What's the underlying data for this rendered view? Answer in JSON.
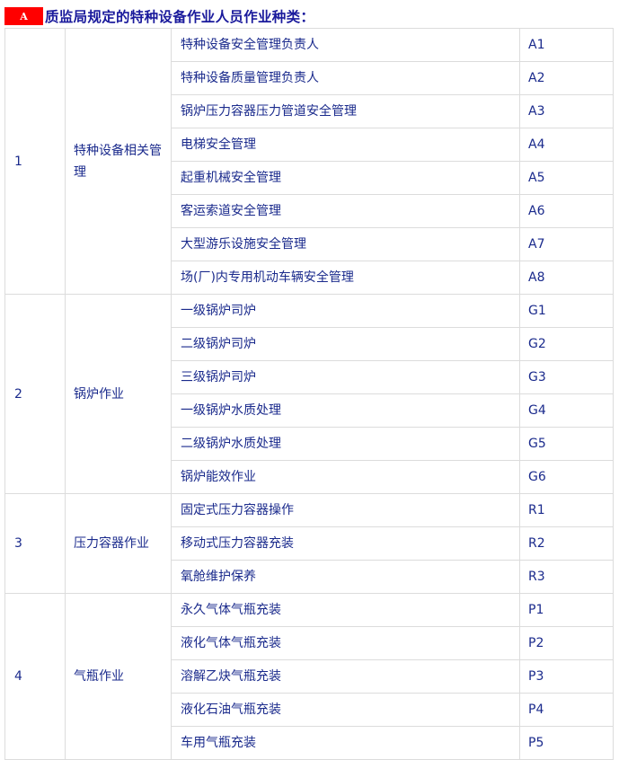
{
  "heading": {
    "badge": "A",
    "title": "质监局规定的特种设备作业人员作业种类："
  },
  "colors": {
    "badge": "#ff0000",
    "text": "#1a2a8c",
    "title": "#1a1a9c",
    "border": "#dcdcdc"
  },
  "groups": [
    {
      "no": "1",
      "category": "特种设备相关管理",
      "items": [
        {
          "name": "特种设备安全管理负责人",
          "code": "A1"
        },
        {
          "name": "特种设备质量管理负责人",
          "code": "A2"
        },
        {
          "name": "锅炉压力容器压力管道安全管理",
          "code": "A3"
        },
        {
          "name": "电梯安全管理",
          "code": "A4"
        },
        {
          "name": "起重机械安全管理",
          "code": "A5"
        },
        {
          "name": "客运索道安全管理",
          "code": "A6"
        },
        {
          "name": "大型游乐设施安全管理",
          "code": "A7"
        },
        {
          "name": "场(厂)内专用机动车辆安全管理",
          "code": "A8"
        }
      ]
    },
    {
      "no": "2",
      "category": "锅炉作业",
      "items": [
        {
          "name": "一级锅炉司炉",
          "code": "G1"
        },
        {
          "name": "二级锅炉司炉",
          "code": "G2"
        },
        {
          "name": "三级锅炉司炉",
          "code": "G3"
        },
        {
          "name": "一级锅炉水质处理",
          "code": "G4"
        },
        {
          "name": "二级锅炉水质处理",
          "code": "G5"
        },
        {
          "name": "锅炉能效作业",
          "code": "G6"
        }
      ]
    },
    {
      "no": "3",
      "category": "压力容器作业",
      "items": [
        {
          "name": "固定式压力容器操作",
          "code": "R1"
        },
        {
          "name": "移动式压力容器充装",
          "code": "R2"
        },
        {
          "name": "氧舱维护保养",
          "code": "R3"
        }
      ]
    },
    {
      "no": "4",
      "category": "气瓶作业",
      "items": [
        {
          "name": "永久气体气瓶充装",
          "code": "P1"
        },
        {
          "name": "液化气体气瓶充装",
          "code": "P2"
        },
        {
          "name": "溶解乙炔气瓶充装",
          "code": "P3"
        },
        {
          "name": "液化石油气瓶充装",
          "code": "P4"
        },
        {
          "name": "车用气瓶充装",
          "code": "P5"
        }
      ]
    }
  ]
}
